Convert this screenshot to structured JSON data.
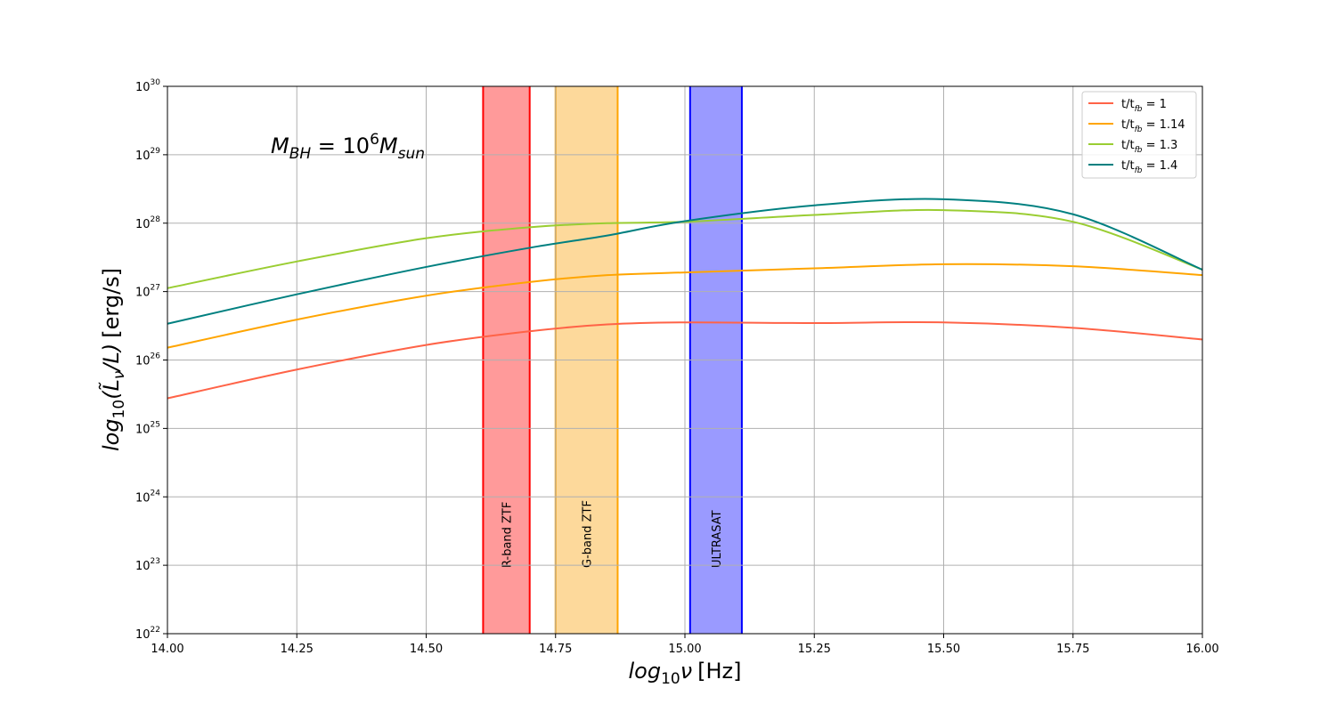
{
  "chart_data": {
    "type": "line",
    "xlabel_math": "log",
    "xlabel_sub": "10",
    "xlabel_var": "ν",
    "xlabel_unit": "[Hz]",
    "ylabel_math": "log",
    "ylabel_sub": "10",
    "ylabel_expr": "(L̃",
    "ylabel_nu": "ν",
    "ylabel_rest": "/L)",
    "ylabel_unit": "[erg/s]",
    "xlim": [
      14.0,
      16.0
    ],
    "ylim": [
      22,
      30
    ],
    "yscale": "log",
    "grid": true,
    "legend_position": "upper right",
    "x_ticks": [
      "14.00",
      "14.25",
      "14.50",
      "14.75",
      "15.00",
      "15.25",
      "15.50",
      "15.75",
      "16.00"
    ],
    "y_ticks": [
      {
        "base": "10",
        "exp": "22"
      },
      {
        "base": "10",
        "exp": "23"
      },
      {
        "base": "10",
        "exp": "24"
      },
      {
        "base": "10",
        "exp": "25"
      },
      {
        "base": "10",
        "exp": "26"
      },
      {
        "base": "10",
        "exp": "27"
      },
      {
        "base": "10",
        "exp": "28"
      },
      {
        "base": "10",
        "exp": "29"
      },
      {
        "base": "10",
        "exp": "30"
      }
    ],
    "annotation": {
      "M": "M",
      "M_sub": "BH",
      "eq": " = 10",
      "exp": "6",
      "M2": "M",
      "M2_sub": "sun"
    },
    "bands": [
      {
        "label": "R-band ZTF",
        "x_range": [
          14.61,
          14.7
        ],
        "fill": "#ff9a9a",
        "edge": "#ff0000"
      },
      {
        "label": "G-band ZTF",
        "x_range": [
          14.75,
          14.87
        ],
        "fill": "#fdd99b",
        "edge": "#ffa500"
      },
      {
        "label": "ULTRASAT",
        "x_range": [
          15.01,
          15.11
        ],
        "fill": "#9a9aff",
        "edge": "#0000ff"
      }
    ],
    "series": [
      {
        "name_prefix": "t/t",
        "name_sub": "fb",
        "name_suffix": " = 1",
        "color": "#ff6347",
        "x": [
          14.0,
          14.25,
          14.5,
          14.7,
          14.85,
          15.0,
          15.25,
          15.5,
          15.75,
          16.0
        ],
        "y": [
          25.44,
          25.86,
          26.22,
          26.42,
          26.52,
          26.55,
          26.54,
          26.55,
          26.47,
          26.3
        ]
      },
      {
        "name_prefix": "t/t",
        "name_sub": "fb",
        "name_suffix": " = 1.14",
        "color": "#ffa500",
        "x": [
          14.0,
          14.25,
          14.5,
          14.7,
          14.85,
          15.0,
          15.25,
          15.5,
          15.75,
          16.0
        ],
        "y": [
          26.18,
          26.59,
          26.94,
          27.14,
          27.24,
          27.28,
          27.34,
          27.4,
          27.37,
          27.24
        ]
      },
      {
        "name_prefix": "t/t",
        "name_sub": "fb",
        "name_suffix": " = 1.3",
        "color": "#9acd32",
        "x": [
          14.0,
          14.25,
          14.5,
          14.7,
          14.85,
          15.0,
          15.25,
          15.5,
          15.75,
          16.0
        ],
        "y": [
          27.05,
          27.44,
          27.78,
          27.94,
          28.0,
          28.02,
          28.12,
          28.19,
          28.02,
          27.32
        ]
      },
      {
        "name_prefix": "t/t",
        "name_sub": "fb",
        "name_suffix": " = 1.4",
        "color": "#008080",
        "x": [
          14.0,
          14.25,
          14.5,
          14.7,
          14.85,
          15.0,
          15.25,
          15.5,
          15.75,
          16.0
        ],
        "y": [
          26.53,
          26.96,
          27.36,
          27.64,
          27.82,
          28.03,
          28.26,
          28.35,
          28.13,
          27.32
        ]
      }
    ]
  }
}
